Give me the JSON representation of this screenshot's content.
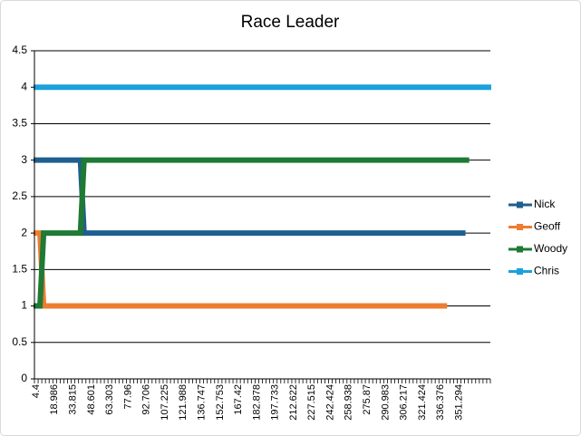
{
  "chart_data": {
    "type": "line",
    "title": "Race Leader",
    "categories": [
      "4.4",
      null,
      null,
      null,
      null,
      "18.986",
      null,
      null,
      null,
      null,
      "33.815",
      null,
      null,
      null,
      null,
      "48.601",
      null,
      null,
      null,
      null,
      "63.303",
      null,
      null,
      null,
      null,
      "77.96",
      null,
      null,
      null,
      null,
      "92.706",
      null,
      null,
      null,
      null,
      "107.225",
      null,
      null,
      null,
      null,
      "121.988",
      null,
      null,
      null,
      null,
      "136.747",
      null,
      null,
      null,
      null,
      "152.753",
      null,
      null,
      null,
      null,
      "167.42",
      null,
      null,
      null,
      null,
      "182.878",
      null,
      null,
      null,
      null,
      "197.733",
      null,
      null,
      null,
      null,
      "212.622",
      null,
      null,
      null,
      null,
      "227.515",
      null,
      null,
      null,
      null,
      "242.424",
      null,
      null,
      null,
      null,
      "258.938",
      null,
      null,
      null,
      null,
      "275.87",
      null,
      null,
      null,
      null,
      "290.983",
      null,
      null,
      null,
      null,
      "306.217",
      null,
      null,
      null,
      null,
      "321.424",
      null,
      null,
      null,
      null,
      "336.376",
      null,
      null,
      null,
      null,
      "351.294",
      null,
      null,
      null,
      null,
      null,
      null,
      null,
      null
    ],
    "series": [
      {
        "name": "Nick",
        "color": "#1f5f8f",
        "values": [
          3,
          3,
          3,
          3,
          3,
          3,
          3,
          3,
          3,
          3,
          3,
          3,
          3,
          2,
          2,
          2,
          2,
          2,
          2,
          2,
          2,
          2,
          2,
          2,
          2,
          2,
          2,
          2,
          2,
          2,
          2,
          2,
          2,
          2,
          2,
          2,
          2,
          2,
          2,
          2,
          2,
          2,
          2,
          2,
          2,
          2,
          2,
          2,
          2,
          2,
          2,
          2,
          2,
          2,
          2,
          2,
          2,
          2,
          2,
          2,
          2,
          2,
          2,
          2,
          2,
          2,
          2,
          2,
          2,
          2,
          2,
          2,
          2,
          2,
          2,
          2,
          2,
          2,
          2,
          2,
          2,
          2,
          2,
          2,
          2,
          2,
          2,
          2,
          2,
          2,
          2,
          2,
          2,
          2,
          2,
          2,
          2,
          2,
          2,
          2,
          2,
          2,
          2,
          2,
          2,
          2,
          2,
          2,
          2,
          2,
          2,
          2,
          2,
          2,
          2,
          2,
          2,
          null,
          null,
          null,
          null,
          null,
          null,
          null
        ]
      },
      {
        "name": "Geoff",
        "color": "#ed7d31",
        "values": [
          2,
          2,
          1,
          1,
          1,
          1,
          1,
          1,
          1,
          1,
          1,
          1,
          1,
          1,
          1,
          1,
          1,
          1,
          1,
          1,
          1,
          1,
          1,
          1,
          1,
          1,
          1,
          1,
          1,
          1,
          1,
          1,
          1,
          1,
          1,
          1,
          1,
          1,
          1,
          1,
          1,
          1,
          1,
          1,
          1,
          1,
          1,
          1,
          1,
          1,
          1,
          1,
          1,
          1,
          1,
          1,
          1,
          1,
          1,
          1,
          1,
          1,
          1,
          1,
          1,
          1,
          1,
          1,
          1,
          1,
          1,
          1,
          1,
          1,
          1,
          1,
          1,
          1,
          1,
          1,
          1,
          1,
          1,
          1,
          1,
          1,
          1,
          1,
          1,
          1,
          1,
          1,
          1,
          1,
          1,
          1,
          1,
          1,
          1,
          1,
          1,
          1,
          1,
          1,
          1,
          1,
          1,
          1,
          1,
          1,
          1,
          1,
          null,
          null,
          null,
          null,
          null,
          null,
          null,
          null,
          null,
          null,
          null,
          null
        ]
      },
      {
        "name": "Woody",
        "color": "#1e7a34",
        "values": [
          1,
          1,
          2,
          2,
          2,
          2,
          2,
          2,
          2,
          2,
          2,
          2,
          2,
          3,
          3,
          3,
          3,
          3,
          3,
          3,
          3,
          3,
          3,
          3,
          3,
          3,
          3,
          3,
          3,
          3,
          3,
          3,
          3,
          3,
          3,
          3,
          3,
          3,
          3,
          3,
          3,
          3,
          3,
          3,
          3,
          3,
          3,
          3,
          3,
          3,
          3,
          3,
          3,
          3,
          3,
          3,
          3,
          3,
          3,
          3,
          3,
          3,
          3,
          3,
          3,
          3,
          3,
          3,
          3,
          3,
          3,
          3,
          3,
          3,
          3,
          3,
          3,
          3,
          3,
          3,
          3,
          3,
          3,
          3,
          3,
          3,
          3,
          3,
          3,
          3,
          3,
          3,
          3,
          3,
          3,
          3,
          3,
          3,
          3,
          3,
          3,
          3,
          3,
          3,
          3,
          3,
          3,
          3,
          3,
          3,
          3,
          3,
          3,
          3,
          3,
          3,
          3,
          3,
          null,
          null,
          null,
          null,
          null,
          null
        ]
      },
      {
        "name": "Chris",
        "color": "#1ba1dc",
        "values": [
          4,
          4,
          4,
          4,
          4,
          4,
          4,
          4,
          4,
          4,
          4,
          4,
          4,
          4,
          4,
          4,
          4,
          4,
          4,
          4,
          4,
          4,
          4,
          4,
          4,
          4,
          4,
          4,
          4,
          4,
          4,
          4,
          4,
          4,
          4,
          4,
          4,
          4,
          4,
          4,
          4,
          4,
          4,
          4,
          4,
          4,
          4,
          4,
          4,
          4,
          4,
          4,
          4,
          4,
          4,
          4,
          4,
          4,
          4,
          4,
          4,
          4,
          4,
          4,
          4,
          4,
          4,
          4,
          4,
          4,
          4,
          4,
          4,
          4,
          4,
          4,
          4,
          4,
          4,
          4,
          4,
          4,
          4,
          4,
          4,
          4,
          4,
          4,
          4,
          4,
          4,
          4,
          4,
          4,
          4,
          4,
          4,
          4,
          4,
          4,
          4,
          4,
          4,
          4,
          4,
          4,
          4,
          4,
          4,
          4,
          4,
          4,
          4,
          4,
          4,
          4,
          4,
          4,
          4,
          4,
          4,
          4,
          4,
          4
        ]
      }
    ],
    "ylim": [
      0,
      4.5
    ],
    "yticks": [
      0,
      0.5,
      1,
      1.5,
      2,
      2.5,
      3,
      3.5,
      4,
      4.5
    ],
    "grid": true,
    "legend": "right"
  }
}
